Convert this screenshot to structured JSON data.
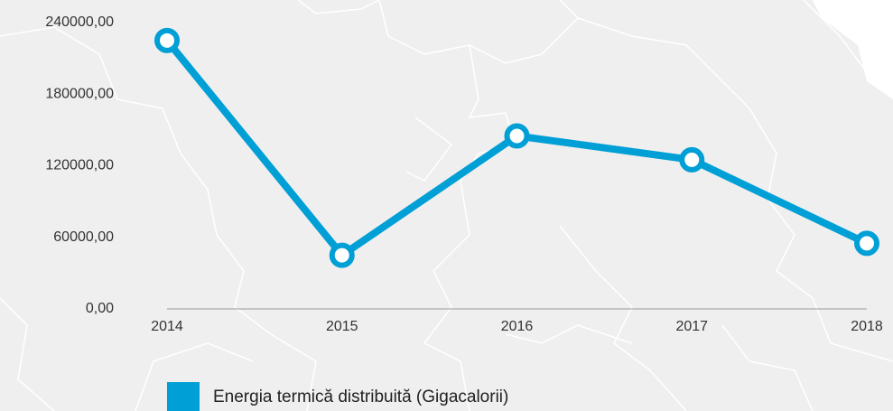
{
  "chart_data": {
    "type": "line",
    "categories": [
      "2014",
      "2015",
      "2016",
      "2017",
      "2018"
    ],
    "series": [
      {
        "name": "Energia termică distribuită (Gigacalorii)",
        "color": "#009fd6",
        "values": [
          225000,
          45000,
          145000,
          125000,
          55000
        ]
      }
    ],
    "ylim": [
      0,
      240000
    ],
    "yticks": [
      {
        "value": 0,
        "label": "0,00"
      },
      {
        "value": 60000,
        "label": "60000,00"
      },
      {
        "value": 120000,
        "label": "120000,00"
      },
      {
        "value": 180000,
        "label": "180000,00"
      },
      {
        "value": 240000,
        "label": "240000,00"
      }
    ],
    "grid": false,
    "legend": "bottom"
  }
}
